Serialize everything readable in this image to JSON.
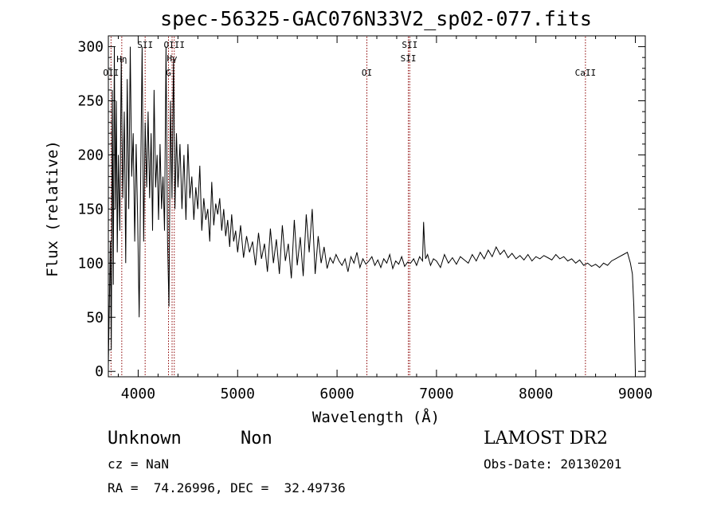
{
  "chart_data": {
    "type": "line",
    "title": "spec-56325-GAC076N33V2_sp02-077.fits",
    "xlabel": "Wavelength (Å)",
    "ylabel": "Flux (relative)",
    "xlim": [
      3700,
      9100
    ],
    "ylim": [
      -5,
      310
    ],
    "xticks": [
      4000,
      5000,
      6000,
      7000,
      8000,
      9000
    ],
    "yticks": [
      0,
      50,
      100,
      150,
      200,
      250,
      300
    ],
    "grid": false,
    "line_color": "#000000",
    "marker_color": "#8b0000",
    "series": [
      {
        "x": [
          3700,
          3710,
          3720,
          3730,
          3740,
          3750,
          3760,
          3770,
          3780,
          3790,
          3800,
          3815,
          3830,
          3845,
          3860,
          3875,
          3890,
          3905,
          3920,
          3935,
          3950,
          3965,
          3980,
          3995,
          4010,
          4025,
          4040,
          4055,
          4070,
          4085,
          4100,
          4115,
          4130,
          4145,
          4160,
          4175,
          4190,
          4205,
          4220,
          4235,
          4250,
          4265,
          4280,
          4295,
          4310,
          4325,
          4340,
          4355,
          4370,
          4385,
          4400,
          4420,
          4440,
          4460,
          4480,
          4500,
          4520,
          4540,
          4560,
          4580,
          4600,
          4620,
          4640,
          4660,
          4680,
          4700,
          4720,
          4740,
          4760,
          4780,
          4800,
          4820,
          4840,
          4860,
          4880,
          4900,
          4920,
          4940,
          4960,
          4980,
          5000,
          5030,
          5060,
          5090,
          5120,
          5150,
          5180,
          5210,
          5240,
          5270,
          5300,
          5330,
          5360,
          5390,
          5420,
          5450,
          5480,
          5510,
          5540,
          5570,
          5600,
          5630,
          5660,
          5690,
          5720,
          5750,
          5780,
          5810,
          5840,
          5870,
          5900,
          5930,
          5960,
          5990,
          6020,
          6050,
          6080,
          6110,
          6140,
          6170,
          6200,
          6230,
          6260,
          6290,
          6320,
          6350,
          6380,
          6410,
          6440,
          6470,
          6500,
          6530,
          6560,
          6590,
          6620,
          6650,
          6680,
          6710,
          6740,
          6770,
          6800,
          6830,
          6860,
          6870,
          6880,
          6890,
          6910,
          6940,
          6970,
          7000,
          7040,
          7080,
          7120,
          7160,
          7200,
          7240,
          7280,
          7320,
          7360,
          7400,
          7440,
          7480,
          7520,
          7560,
          7600,
          7640,
          7680,
          7720,
          7760,
          7800,
          7840,
          7880,
          7920,
          7960,
          8000,
          8040,
          8080,
          8120,
          8160,
          8200,
          8240,
          8280,
          8320,
          8360,
          8400,
          8440,
          8480,
          8520,
          8560,
          8600,
          8640,
          8680,
          8720,
          8760,
          8800,
          8840,
          8880,
          8920,
          8950,
          8970,
          8985,
          8995,
          9000
        ],
        "y": [
          5,
          60,
          120,
          20,
          260,
          80,
          300,
          150,
          250,
          110,
          200,
          130,
          290,
          160,
          240,
          100,
          270,
          150,
          300,
          180,
          220,
          120,
          210,
          140,
          50,
          180,
          300,
          120,
          230,
          170,
          240,
          160,
          220,
          130,
          260,
          170,
          200,
          140,
          210,
          150,
          180,
          130,
          300,
          120,
          60,
          250,
          160,
          290,
          150,
          220,
          170,
          210,
          150,
          200,
          140,
          210,
          160,
          180,
          140,
          170,
          150,
          190,
          130,
          160,
          140,
          150,
          120,
          175,
          135,
          155,
          145,
          160,
          130,
          150,
          125,
          140,
          115,
          145,
          120,
          130,
          110,
          135,
          105,
          125,
          110,
          120,
          98,
          128,
          104,
          118,
          92,
          132,
          100,
          122,
          90,
          135,
          102,
          118,
          86,
          140,
          98,
          124,
          88,
          145,
          110,
          150,
          90,
          125,
          100,
          115,
          95,
          105,
          100,
          108,
          102,
          98,
          104,
          92,
          106,
          100,
          110,
          96,
          104,
          99,
          102,
          106,
          98,
          103,
          96,
          104,
          100,
          108,
          95,
          102,
          99,
          106,
          97,
          101,
          100,
          104,
          98,
          106,
          102,
          138,
          118,
          104,
          108,
          98,
          104,
          102,
          96,
          108,
          100,
          105,
          99,
          106,
          103,
          100,
          108,
          102,
          110,
          104,
          112,
          106,
          115,
          108,
          112,
          105,
          109,
          104,
          107,
          103,
          108,
          102,
          106,
          104,
          107,
          105,
          103,
          108,
          104,
          106,
          102,
          104,
          100,
          103,
          98,
          100,
          97,
          99,
          96,
          100,
          98,
          102,
          104,
          106,
          108,
          110,
          100,
          90,
          60,
          20,
          0
        ]
      }
    ],
    "line_markers": [
      {
        "x": 3727,
        "label": "OII",
        "row": 3
      },
      {
        "x": 3835,
        "label": "Hη",
        "row": 1
      },
      {
        "x": 4070,
        "label": "SII",
        "row": 0
      },
      {
        "x": 4305,
        "label": "G",
        "row": 3
      },
      {
        "x": 4341,
        "label": "Hγ",
        "row": 2
      },
      {
        "x": 4363,
        "label": "OIII",
        "row": 0
      },
      {
        "x": 6300,
        "label": "OI",
        "row": 3
      },
      {
        "x": 6717,
        "label": "SII",
        "row": 2
      },
      {
        "x": 6731,
        "label": "SII",
        "row": 0
      },
      {
        "x": 8498,
        "label": "CaII",
        "row": 3
      }
    ]
  },
  "info": {
    "object_class": "Unknown",
    "subclass": "Non",
    "cz": "cz = NaN",
    "coords": "RA =  74.26996, DEC =  32.49736",
    "survey": "LAMOST DR2",
    "obs_date": "Obs-Date: 20130201"
  }
}
